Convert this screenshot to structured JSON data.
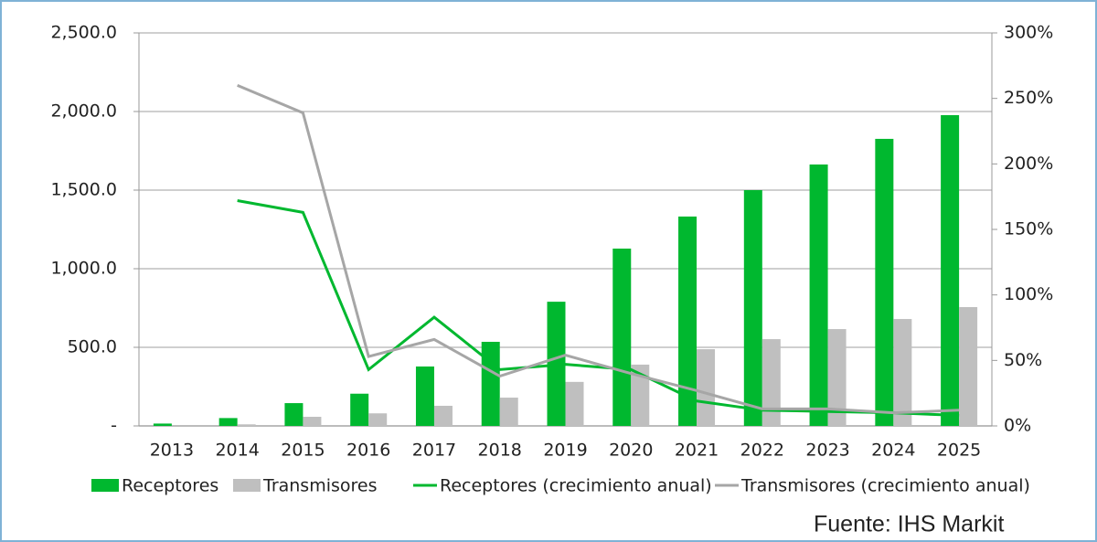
{
  "chart_data": {
    "type": "bar-line",
    "categories": [
      "2013",
      "2014",
      "2015",
      "2016",
      "2017",
      "2018",
      "2019",
      "2020",
      "2021",
      "2022",
      "2023",
      "2024",
      "2025"
    ],
    "series": [
      {
        "name": "Receptores",
        "type": "bar",
        "color": "#00b82f",
        "values": [
          15,
          50,
          145,
          205,
          378,
          535,
          790,
          1128,
          1332,
          1500,
          1663,
          1826,
          1977
        ]
      },
      {
        "name": "Transmisores",
        "type": "bar",
        "color": "#bfbfbf",
        "values": [
          0,
          10,
          58,
          80,
          128,
          180,
          280,
          390,
          488,
          552,
          616,
          680,
          756
        ]
      },
      {
        "name": "Receptores (crecimiento anual)",
        "type": "line",
        "axis": "y2",
        "color": "#00b82f",
        "values": [
          null,
          172,
          163,
          43,
          83,
          43,
          47,
          43,
          19,
          12,
          11,
          10,
          8
        ]
      },
      {
        "name": "Transmisores (crecimiento anual)",
        "type": "line",
        "axis": "y2",
        "color": "#a6a6a6",
        "values": [
          null,
          260,
          239,
          53,
          66,
          38,
          54,
          40,
          27,
          13,
          13,
          10,
          12
        ]
      }
    ],
    "ylim": [
      0,
      2500
    ],
    "yticks": [
      {
        "value": 0,
        "label": "-"
      },
      {
        "value": 500,
        "label": "500.0"
      },
      {
        "value": 1000,
        "label": "1,000.0"
      },
      {
        "value": 1500,
        "label": "1,500.0"
      },
      {
        "value": 2000,
        "label": "2,000.0"
      },
      {
        "value": 2500,
        "label": "2,500.0"
      }
    ],
    "y2lim": [
      0,
      300
    ],
    "y2ticks": [
      {
        "value": 0,
        "label": "0%"
      },
      {
        "value": 50,
        "label": "50%"
      },
      {
        "value": 100,
        "label": "100%"
      },
      {
        "value": 150,
        "label": "150%"
      },
      {
        "value": 200,
        "label": "200%"
      },
      {
        "value": 250,
        "label": "250%"
      },
      {
        "value": 300,
        "label": "300%"
      }
    ],
    "grid": true,
    "source": "Fuente: IHS Markit"
  }
}
